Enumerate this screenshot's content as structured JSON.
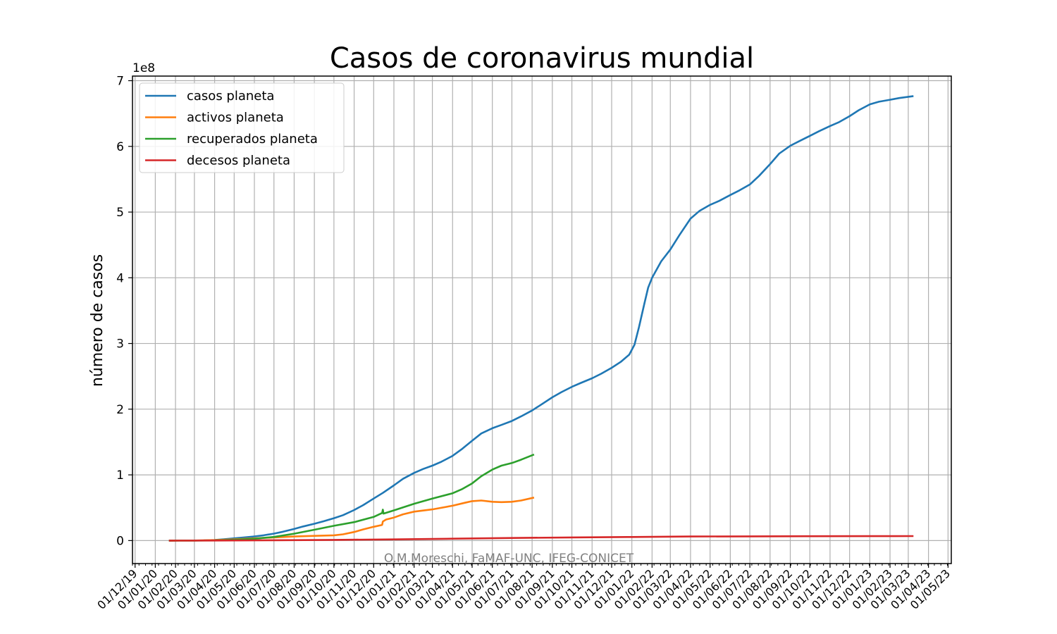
{
  "chart_data": {
    "type": "line",
    "title": "Casos de coronavirus mundial",
    "xlabel": "",
    "ylabel": "número de casos",
    "y_offset_label": "1e8",
    "y_scale": 100000000,
    "ylim": [
      -35000000,
      707000000
    ],
    "xlim": [
      "2019-11-27",
      "2023-05-06"
    ],
    "y_ticks": [
      0,
      100000000,
      200000000,
      300000000,
      400000000,
      500000000,
      600000000,
      700000000
    ],
    "y_tick_labels": [
      "0",
      "1",
      "2",
      "3",
      "4",
      "5",
      "6",
      "7"
    ],
    "x_ticks": [
      "2019-12-01",
      "2020-01-01",
      "2020-02-01",
      "2020-03-01",
      "2020-04-01",
      "2020-05-01",
      "2020-06-01",
      "2020-07-01",
      "2020-08-01",
      "2020-09-01",
      "2020-10-01",
      "2020-11-01",
      "2020-12-01",
      "2021-01-01",
      "2021-02-01",
      "2021-03-01",
      "2021-04-01",
      "2021-05-01",
      "2021-06-01",
      "2021-07-01",
      "2021-08-01",
      "2021-09-01",
      "2021-10-01",
      "2021-11-01",
      "2021-12-01",
      "2022-01-01",
      "2022-02-01",
      "2022-03-01",
      "2022-04-01",
      "2022-05-01",
      "2022-06-01",
      "2022-07-01",
      "2022-08-01",
      "2022-09-01",
      "2022-10-01",
      "2022-11-01",
      "2022-12-01",
      "2023-01-01",
      "2023-02-01",
      "2023-03-01",
      "2023-04-01",
      "2023-05-01"
    ],
    "x_tick_labels": [
      "01/12/19",
      "01/01/20",
      "01/02/20",
      "01/03/20",
      "01/04/20",
      "01/05/20",
      "01/06/20",
      "01/07/20",
      "01/08/20",
      "01/09/20",
      "01/10/20",
      "01/11/20",
      "01/12/20",
      "01/01/21",
      "01/02/21",
      "01/03/21",
      "01/04/21",
      "01/05/21",
      "01/06/21",
      "01/07/21",
      "01/08/21",
      "01/09/21",
      "01/10/21",
      "01/11/21",
      "01/12/21",
      "01/01/22",
      "01/02/22",
      "01/03/22",
      "01/04/22",
      "01/05/22",
      "01/06/22",
      "01/07/22",
      "01/08/22",
      "01/09/22",
      "01/10/22",
      "01/11/22",
      "01/12/22",
      "01/01/23",
      "01/02/23",
      "01/03/23",
      "01/04/23",
      "01/05/23"
    ],
    "grid": true,
    "legend_position": "top-left",
    "annotation": "O.M.Moreschi, FaMAF-UNC, IFEG-CONICET",
    "series": [
      {
        "name": "casos planeta",
        "color": "#1f77b4",
        "points": [
          [
            "2020-01-22",
            500
          ],
          [
            "2020-02-15",
            70000
          ],
          [
            "2020-03-01",
            90000
          ],
          [
            "2020-03-15",
            170000
          ],
          [
            "2020-04-01",
            950000
          ],
          [
            "2020-04-15",
            2000000
          ],
          [
            "2020-05-01",
            3400000
          ],
          [
            "2020-05-15",
            4600000
          ],
          [
            "2020-06-01",
            6300000
          ],
          [
            "2020-06-15",
            8000000
          ],
          [
            "2020-07-01",
            10600000
          ],
          [
            "2020-07-15",
            13500000
          ],
          [
            "2020-08-01",
            17600000
          ],
          [
            "2020-08-15",
            21500000
          ],
          [
            "2020-09-01",
            25600000
          ],
          [
            "2020-09-15",
            29300000
          ],
          [
            "2020-10-01",
            34000000
          ],
          [
            "2020-10-15",
            38700000
          ],
          [
            "2020-11-01",
            46500000
          ],
          [
            "2020-11-15",
            54000000
          ],
          [
            "2020-12-01",
            64000000
          ],
          [
            "2020-12-15",
            72500000
          ],
          [
            "2021-01-01",
            84000000
          ],
          [
            "2021-01-15",
            94000000
          ],
          [
            "2021-02-01",
            103000000
          ],
          [
            "2021-02-15",
            109000000
          ],
          [
            "2021-03-01",
            114000000
          ],
          [
            "2021-03-15",
            120000000
          ],
          [
            "2021-04-01",
            129000000
          ],
          [
            "2021-04-15",
            139000000
          ],
          [
            "2021-05-01",
            152000000
          ],
          [
            "2021-05-15",
            163000000
          ],
          [
            "2021-06-01",
            171000000
          ],
          [
            "2021-06-15",
            176000000
          ],
          [
            "2021-07-01",
            182000000
          ],
          [
            "2021-07-15",
            189000000
          ],
          [
            "2021-08-01",
            198000000
          ],
          [
            "2021-08-15",
            207000000
          ],
          [
            "2021-09-01",
            218000000
          ],
          [
            "2021-09-15",
            226000000
          ],
          [
            "2021-10-01",
            234000000
          ],
          [
            "2021-10-15",
            240000000
          ],
          [
            "2021-11-01",
            247000000
          ],
          [
            "2021-11-15",
            254000000
          ],
          [
            "2021-12-01",
            263000000
          ],
          [
            "2021-12-15",
            272000000
          ],
          [
            "2021-12-28",
            283000000
          ],
          [
            "2022-01-05",
            298000000
          ],
          [
            "2022-01-12",
            325000000
          ],
          [
            "2022-01-20",
            360000000
          ],
          [
            "2022-01-26",
            385000000
          ],
          [
            "2022-02-01",
            400000000
          ],
          [
            "2022-02-15",
            425000000
          ],
          [
            "2022-03-01",
            443000000
          ],
          [
            "2022-03-15",
            465000000
          ],
          [
            "2022-04-01",
            490000000
          ],
          [
            "2022-04-15",
            502000000
          ],
          [
            "2022-05-01",
            511000000
          ],
          [
            "2022-05-15",
            517000000
          ],
          [
            "2022-06-01",
            526000000
          ],
          [
            "2022-06-15",
            533000000
          ],
          [
            "2022-07-01",
            542000000
          ],
          [
            "2022-07-15",
            555000000
          ],
          [
            "2022-08-01",
            573000000
          ],
          [
            "2022-08-15",
            589000000
          ],
          [
            "2022-09-01",
            601000000
          ],
          [
            "2022-09-15",
            608000000
          ],
          [
            "2022-10-01",
            616000000
          ],
          [
            "2022-10-15",
            623000000
          ],
          [
            "2022-11-01",
            631000000
          ],
          [
            "2022-11-15",
            637000000
          ],
          [
            "2022-12-01",
            646000000
          ],
          [
            "2022-12-15",
            655000000
          ],
          [
            "2023-01-01",
            664000000
          ],
          [
            "2023-01-15",
            668000000
          ],
          [
            "2023-02-01",
            671000000
          ],
          [
            "2023-02-15",
            673500000
          ],
          [
            "2023-03-09",
            676500000
          ]
        ]
      },
      {
        "name": "activos planeta",
        "color": "#ff7f0e",
        "points": [
          [
            "2020-01-22",
            500
          ],
          [
            "2020-03-01",
            40000
          ],
          [
            "2020-04-01",
            700000
          ],
          [
            "2020-05-01",
            2000000
          ],
          [
            "2020-06-01",
            3400000
          ],
          [
            "2020-07-01",
            4800000
          ],
          [
            "2020-08-01",
            6200000
          ],
          [
            "2020-09-01",
            7100000
          ],
          [
            "2020-10-01",
            8000000
          ],
          [
            "2020-10-15",
            9500000
          ],
          [
            "2020-11-01",
            13000000
          ],
          [
            "2020-11-15",
            17000000
          ],
          [
            "2020-12-01",
            21000000
          ],
          [
            "2020-12-13",
            23500000
          ],
          [
            "2020-12-14",
            24000000
          ],
          [
            "2020-12-15",
            29000000
          ],
          [
            "2020-12-20",
            32000000
          ],
          [
            "2021-01-01",
            35000000
          ],
          [
            "2021-01-15",
            40000000
          ],
          [
            "2021-02-01",
            44000000
          ],
          [
            "2021-03-01",
            47500000
          ],
          [
            "2021-04-01",
            53000000
          ],
          [
            "2021-04-20",
            57500000
          ],
          [
            "2021-05-01",
            60000000
          ],
          [
            "2021-05-15",
            61000000
          ],
          [
            "2021-06-01",
            59000000
          ],
          [
            "2021-06-15",
            58500000
          ],
          [
            "2021-07-01",
            59000000
          ],
          [
            "2021-07-15",
            61000000
          ],
          [
            "2021-08-04",
            65500000
          ]
        ]
      },
      {
        "name": "recuperados planeta",
        "color": "#2ca02c",
        "points": [
          [
            "2020-01-22",
            500
          ],
          [
            "2020-03-01",
            45000
          ],
          [
            "2020-04-01",
            200000
          ],
          [
            "2020-05-01",
            1200000
          ],
          [
            "2020-06-01",
            2700000
          ],
          [
            "2020-07-01",
            5500000
          ],
          [
            "2020-08-01",
            10500000
          ],
          [
            "2020-09-01",
            16500000
          ],
          [
            "2020-10-01",
            22500000
          ],
          [
            "2020-11-01",
            28000000
          ],
          [
            "2020-12-01",
            36000000
          ],
          [
            "2020-12-14",
            42000000
          ],
          [
            "2020-12-15",
            47000000
          ],
          [
            "2020-12-16",
            41000000
          ],
          [
            "2021-01-01",
            46000000
          ],
          [
            "2021-02-01",
            56000000
          ],
          [
            "2021-03-01",
            64000000
          ],
          [
            "2021-04-01",
            72000000
          ],
          [
            "2021-04-15",
            78000000
          ],
          [
            "2021-05-01",
            87000000
          ],
          [
            "2021-05-15",
            98000000
          ],
          [
            "2021-06-01",
            108000000
          ],
          [
            "2021-06-15",
            114000000
          ],
          [
            "2021-07-01",
            118000000
          ],
          [
            "2021-07-15",
            123000000
          ],
          [
            "2021-08-04",
            131000000
          ]
        ]
      },
      {
        "name": "decesos planeta",
        "color": "#d62728",
        "points": [
          [
            "2020-01-22",
            17
          ],
          [
            "2020-04-01",
            50000
          ],
          [
            "2020-07-01",
            500000
          ],
          [
            "2020-10-01",
            1000000
          ],
          [
            "2021-01-01",
            1800000
          ],
          [
            "2021-04-01",
            2800000
          ],
          [
            "2021-07-01",
            3900000
          ],
          [
            "2021-10-01",
            4800000
          ],
          [
            "2022-01-01",
            5400000
          ],
          [
            "2022-04-01",
            6200000
          ],
          [
            "2022-07-01",
            6400000
          ],
          [
            "2022-10-01",
            6550000
          ],
          [
            "2023-01-01",
            6700000
          ],
          [
            "2023-03-09",
            6870000
          ]
        ]
      }
    ]
  }
}
